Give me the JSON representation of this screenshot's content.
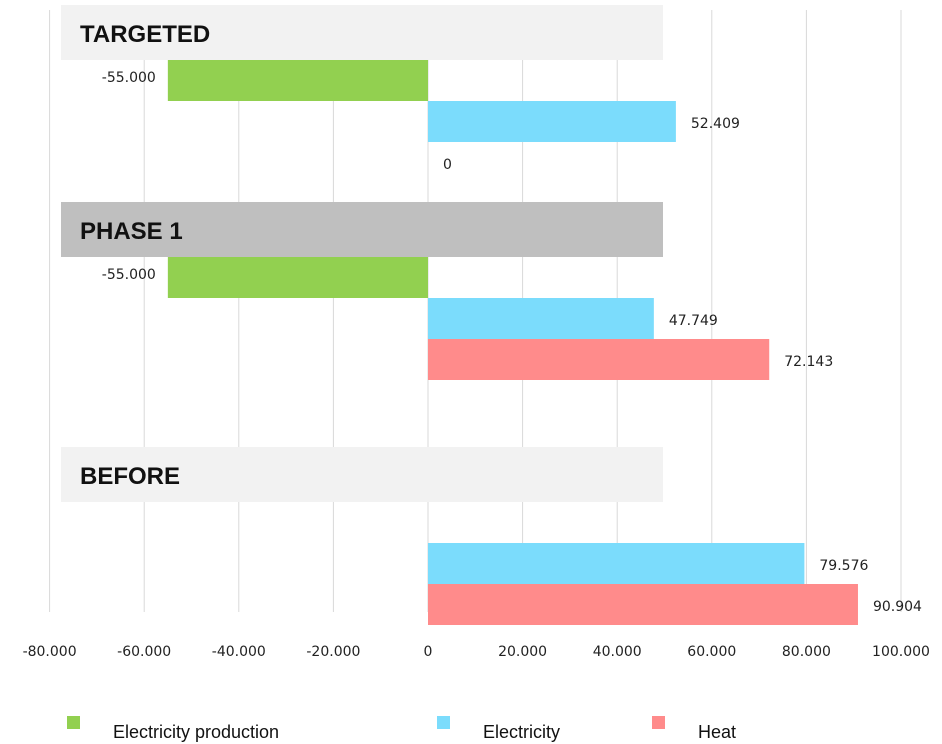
{
  "chart_data": {
    "type": "bar",
    "orientation": "horizontal",
    "title": "",
    "xlim": [
      -80000,
      100000
    ],
    "x_ticks": [
      -80000,
      -60000,
      -40000,
      -20000,
      0,
      20000,
      40000,
      60000,
      80000,
      100000
    ],
    "x_tick_labels": [
      "-80.000",
      "-60.000",
      "-40.000",
      "-20.000",
      "0",
      "20.000",
      "40.000",
      "60.000",
      "80.000",
      "100.000"
    ],
    "grid": true,
    "legend_position": "bottom",
    "categories": [
      "TARGETED",
      "PHASE 1",
      "BEFORE"
    ],
    "series": [
      {
        "name": "Electricity production",
        "color": "#92d050",
        "values": [
          -55000,
          -55000,
          null
        ],
        "labels": [
          "-55.000",
          "-55.000",
          ""
        ]
      },
      {
        "name": "Electricity",
        "color": "#7bdcfc",
        "values": [
          52409,
          47749,
          79576
        ],
        "labels": [
          "52.409",
          "47.749",
          "79.576"
        ]
      },
      {
        "name": "Heat",
        "color": "#ff8b8b",
        "values": [
          0,
          72143,
          90904
        ],
        "labels": [
          "0",
          "72.143",
          "90.904"
        ]
      }
    ],
    "group_label_backgrounds": [
      "#f2f2f2",
      "#bfbfbf",
      "#f2f2f2"
    ]
  }
}
